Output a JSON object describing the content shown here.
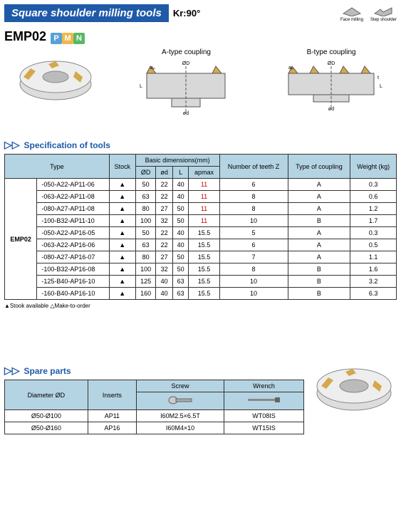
{
  "header": {
    "title": "Square shoulder milling tools",
    "kr": "Kr:90°",
    "icon1_label": "Face milling",
    "icon2_label": "Step shoulder"
  },
  "product": {
    "code": "EMP02",
    "badges": [
      {
        "letter": "P",
        "color": "#5aa0d8"
      },
      {
        "letter": "M",
        "color": "#f0b84a"
      },
      {
        "letter": "N",
        "color": "#5ab865"
      }
    ]
  },
  "diagrams": {
    "a": "A-type coupling",
    "b": "B-type coupling"
  },
  "spec": {
    "title": "Specification of tools",
    "headers": {
      "type": "Type",
      "stock": "Stock",
      "basic": "Basic dimensions(mm)",
      "D": "ØD",
      "d": "ød",
      "L": "L",
      "ap": "apmax",
      "teeth": "Number of teeth Z",
      "coupling": "Type of coupling",
      "weight": "Weight (kg)"
    },
    "family": "EMP02",
    "rows": [
      {
        "type": "-050-A22-AP11-06",
        "stock": "▲",
        "D": "50",
        "d": "22",
        "L": "40",
        "ap": "11",
        "ap_red": true,
        "Z": "6",
        "c": "A",
        "w": "0.3"
      },
      {
        "type": "-063-A22-AP11-08",
        "stock": "▲",
        "D": "63",
        "d": "22",
        "L": "40",
        "ap": "11",
        "ap_red": true,
        "Z": "8",
        "c": "A",
        "w": "0.6"
      },
      {
        "type": "-080-A27-AP11-08",
        "stock": "▲",
        "D": "80",
        "d": "27",
        "L": "50",
        "ap": "11",
        "ap_red": true,
        "Z": "8",
        "c": "A",
        "w": "1.2"
      },
      {
        "type": "-100-B32-AP11-10",
        "stock": "▲",
        "D": "100",
        "d": "32",
        "L": "50",
        "ap": "11",
        "ap_red": true,
        "Z": "10",
        "c": "B",
        "w": "1.7"
      },
      {
        "type": "-050-A22-AP16-05",
        "stock": "▲",
        "D": "50",
        "d": "22",
        "L": "40",
        "ap": "15.5",
        "Z": "5",
        "c": "A",
        "w": "0.3"
      },
      {
        "type": "-063-A22-AP16-06",
        "stock": "▲",
        "D": "63",
        "d": "22",
        "L": "40",
        "ap": "15.5",
        "Z": "6",
        "c": "A",
        "w": "0.5"
      },
      {
        "type": "-080-A27-AP16-07",
        "stock": "▲",
        "D": "80",
        "d": "27",
        "L": "50",
        "ap": "15.5",
        "Z": "7",
        "c": "A",
        "w": "1.1"
      },
      {
        "type": "-100-B32-AP16-08",
        "stock": "▲",
        "D": "100",
        "d": "32",
        "L": "50",
        "ap": "15.5",
        "Z": "8",
        "c": "B",
        "w": "1.6"
      },
      {
        "type": "-125-B40-AP16-10",
        "stock": "▲",
        "D": "125",
        "d": "40",
        "L": "63",
        "ap": "15.5",
        "Z": "10",
        "c": "B",
        "w": "3.2"
      },
      {
        "type": "-160-B40-AP16-10",
        "stock": "▲",
        "D": "160",
        "d": "40",
        "L": "63",
        "ap": "15.5",
        "Z": "10",
        "c": "B",
        "w": "6.3"
      }
    ],
    "legend": "▲Stook available    △Make-to-order"
  },
  "spare": {
    "title": "Spare parts",
    "headers": {
      "diameter": "Diameter ØD",
      "inserts": "Inserts",
      "screw": "Screw",
      "wrench": "Wrench"
    },
    "rows": [
      {
        "d": "Ø50-Ø100",
        "ins": "AP11",
        "screw": "I60M2.5×6.5T",
        "wrench": "WT08IS"
      },
      {
        "d": "Ø50-Ø160",
        "ins": "AP16",
        "screw": "I60M4×10",
        "wrench": "WT15IS"
      }
    ]
  },
  "colors": {
    "header_bg": "#b5d4e3",
    "title_bg": "#1e5aa8",
    "red": "#c00"
  }
}
